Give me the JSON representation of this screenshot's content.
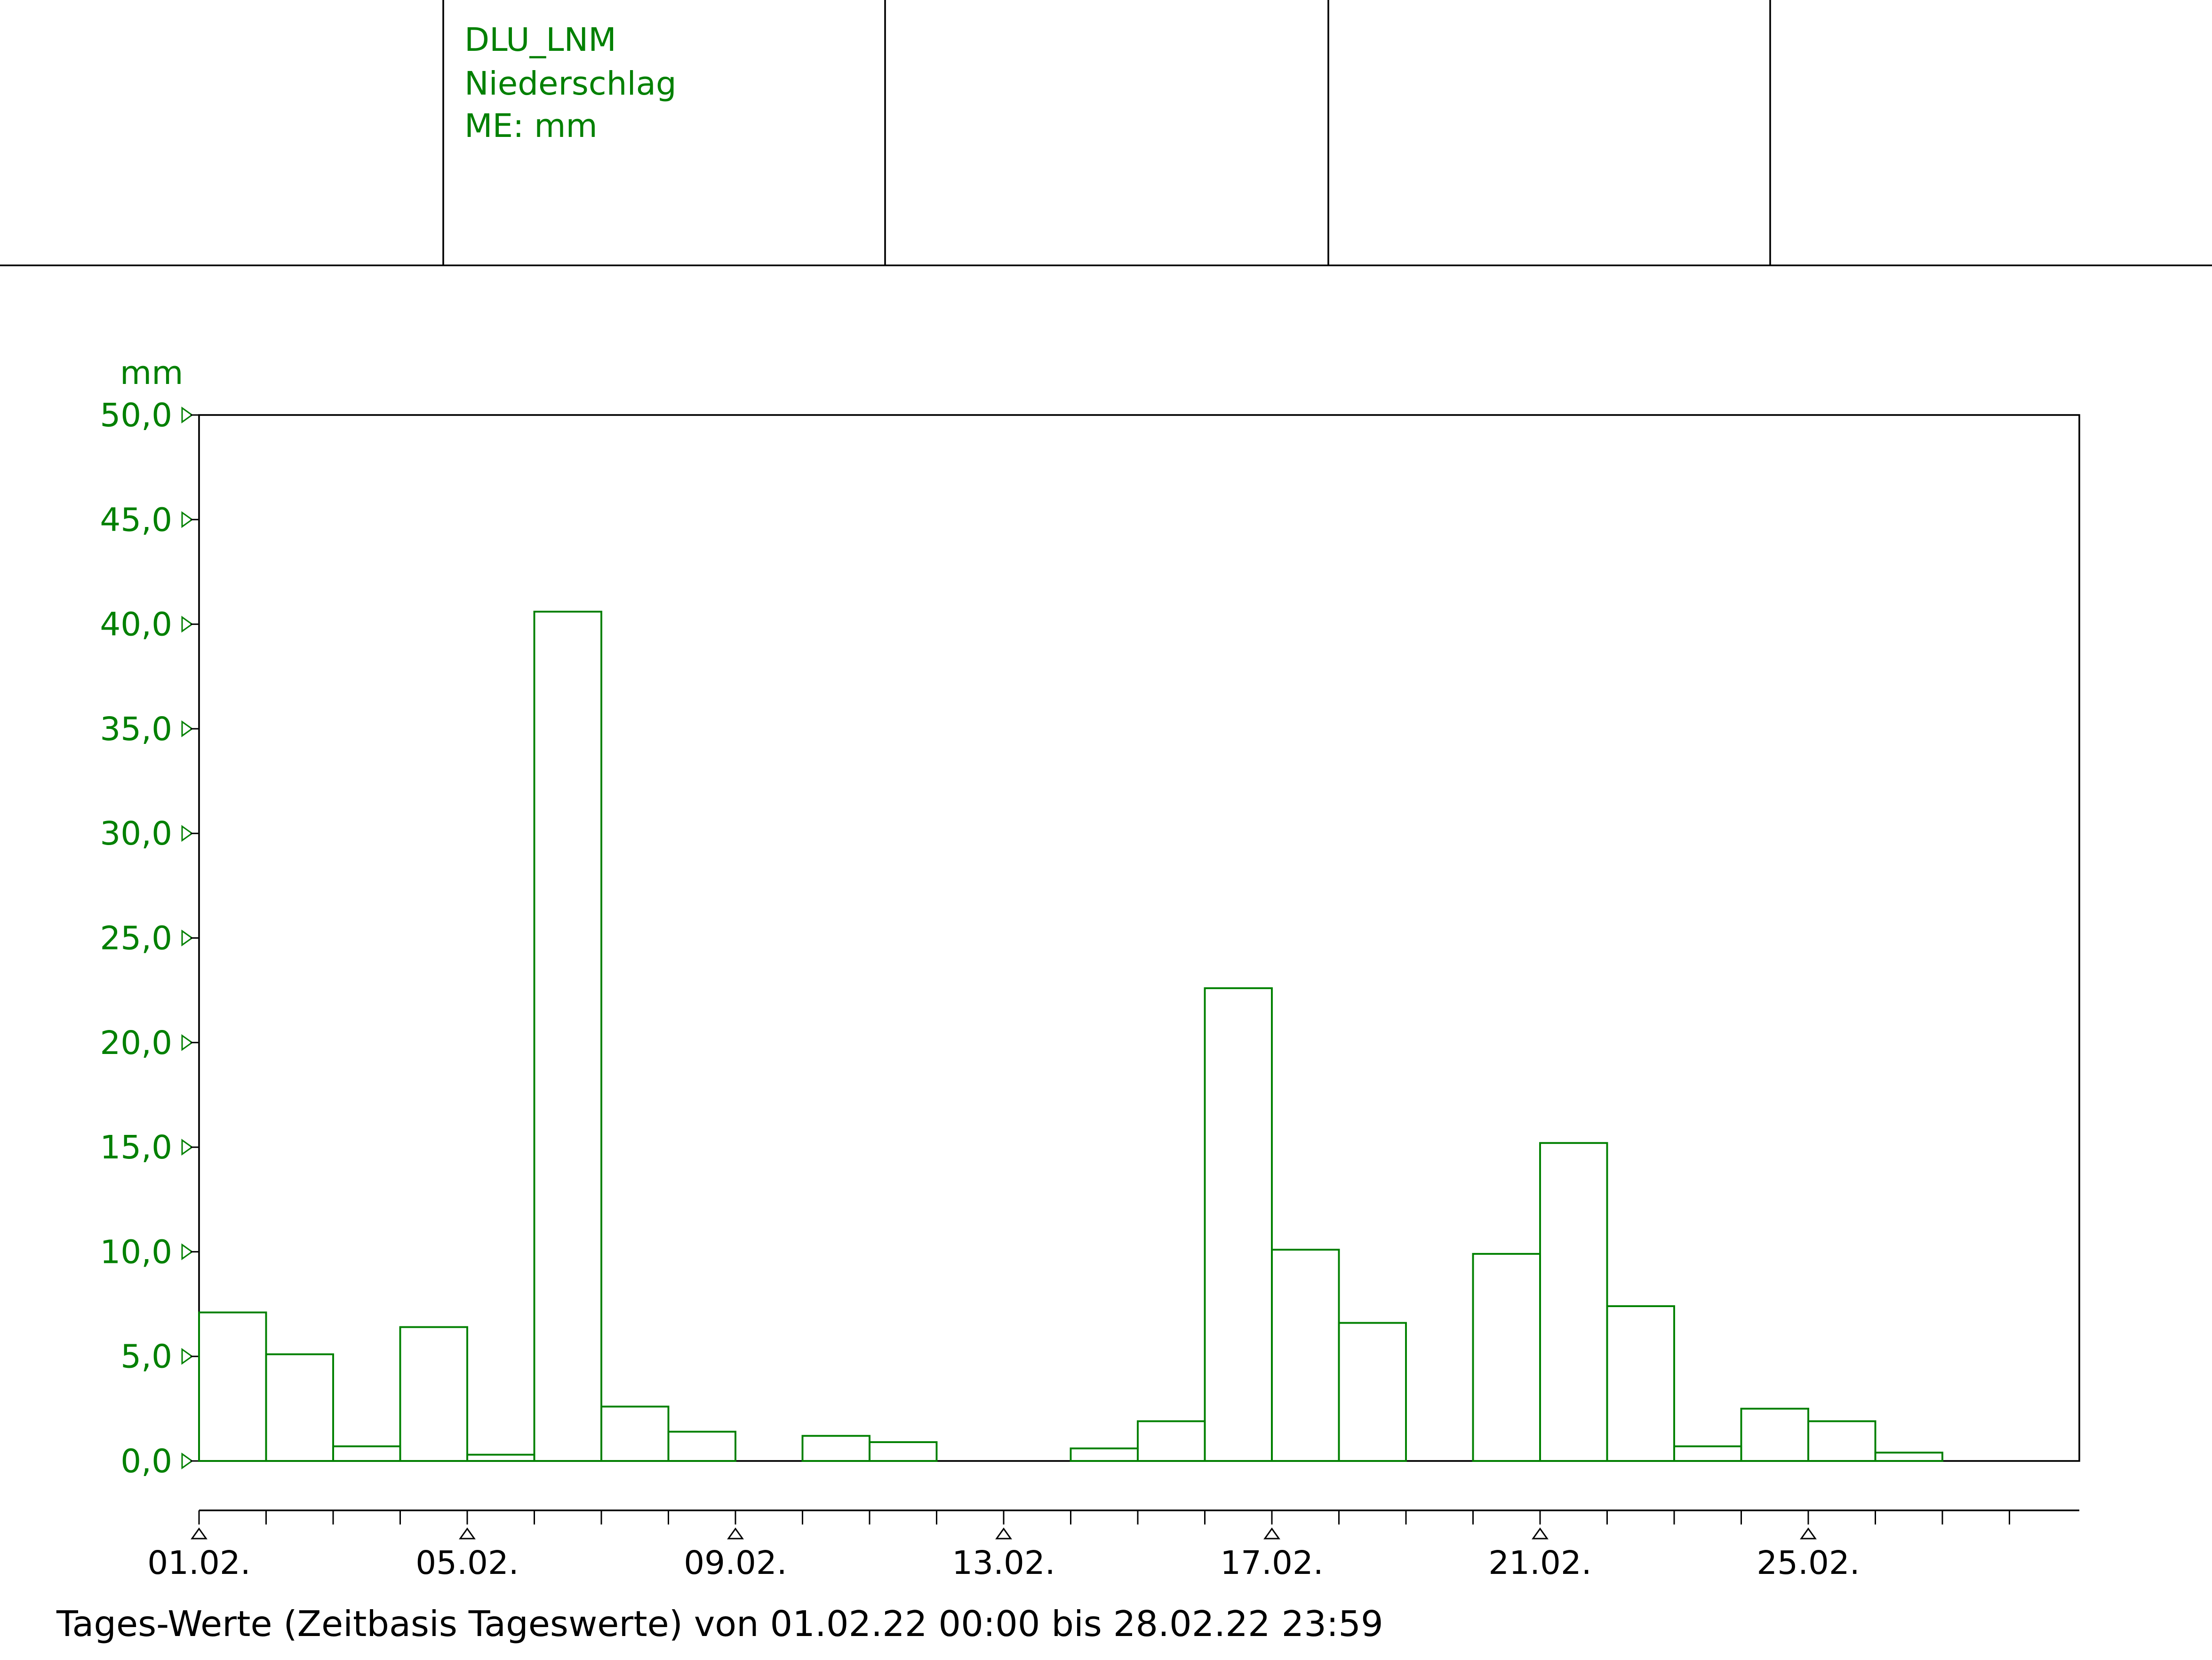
{
  "header": {
    "lines": [
      "DLU_LNM",
      "Niederschlag",
      "ME: mm"
    ]
  },
  "chart_data": {
    "type": "bar",
    "y_label": "mm",
    "caption": "Tages-Werte (Zeitbasis Tageswerte) von 01.02.22 00:00 bis 28.02.22 23:59",
    "categories": [
      "01.02.",
      null,
      null,
      null,
      "05.02.",
      null,
      null,
      null,
      "09.02.",
      null,
      null,
      null,
      "13.02.",
      null,
      null,
      null,
      "17.02.",
      null,
      null,
      null,
      "21.02.",
      null,
      null,
      null,
      "25.02.",
      null,
      null,
      null
    ],
    "values": [
      7.1,
      5.1,
      0.7,
      6.4,
      0.3,
      40.6,
      2.6,
      1.4,
      0,
      1.2,
      0.9,
      0,
      0,
      0.6,
      1.9,
      22.6,
      10.1,
      6.6,
      0,
      9.9,
      15.2,
      7.4,
      0.7,
      2.5,
      1.9,
      0.4,
      0,
      0
    ],
    "color": "#008000",
    "ylim": [
      0,
      50
    ],
    "yticks": [
      {
        "value": 0,
        "label": "0,0"
      },
      {
        "value": 5,
        "label": "5,0"
      },
      {
        "value": 10,
        "label": "10,0"
      },
      {
        "value": 15,
        "label": "15,0"
      },
      {
        "value": 20,
        "label": "20,0"
      },
      {
        "value": 25,
        "label": "25,0"
      },
      {
        "value": 30,
        "label": "30,0"
      },
      {
        "value": 35,
        "label": "35,0"
      },
      {
        "value": 40,
        "label": "40,0"
      },
      {
        "value": 45,
        "label": "45,0"
      },
      {
        "value": 50,
        "label": "50,0"
      }
    ]
  }
}
